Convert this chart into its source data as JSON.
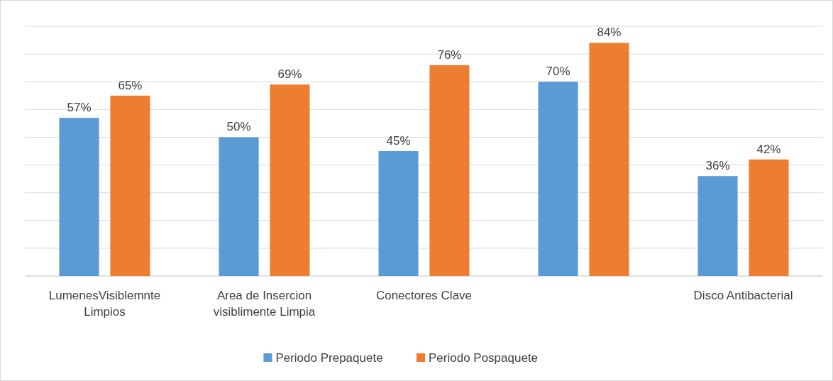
{
  "chart_data": {
    "type": "bar",
    "categories": [
      "LumenesVisiblemnte Limpios",
      "Area de Insercion visiblimente Limpia",
      "Conectores Clave",
      null,
      "Disco Antibacterial"
    ],
    "series": [
      {
        "name": "Periodo Prepaquete",
        "color": "#5b9bd5",
        "values": [
          57,
          50,
          45,
          70,
          36
        ],
        "value_labels": [
          "57%",
          "50%",
          "45%",
          "70%",
          "36%"
        ]
      },
      {
        "name": "Periodo Pospaquete",
        "color": "#ed7d31",
        "values": [
          65,
          69,
          76,
          84,
          42
        ],
        "value_labels": [
          "65%",
          "69%",
          "76%",
          "84%",
          "42%"
        ]
      }
    ],
    "ylim": [
      0,
      90
    ],
    "yticks": [
      {
        "value": 0,
        "label": null
      },
      {
        "value": 10,
        "label": null
      },
      {
        "value": 20,
        "label": null
      },
      {
        "value": 30,
        "label": null
      },
      {
        "value": 40,
        "label": null
      },
      {
        "value": 50,
        "label": null
      },
      {
        "value": 60,
        "label": null
      },
      {
        "value": 70,
        "label": null
      },
      {
        "value": 80,
        "label": null
      },
      {
        "value": 90,
        "label": null
      }
    ],
    "tick_labels": "x",
    "grid": "y",
    "legend": "bottom"
  }
}
